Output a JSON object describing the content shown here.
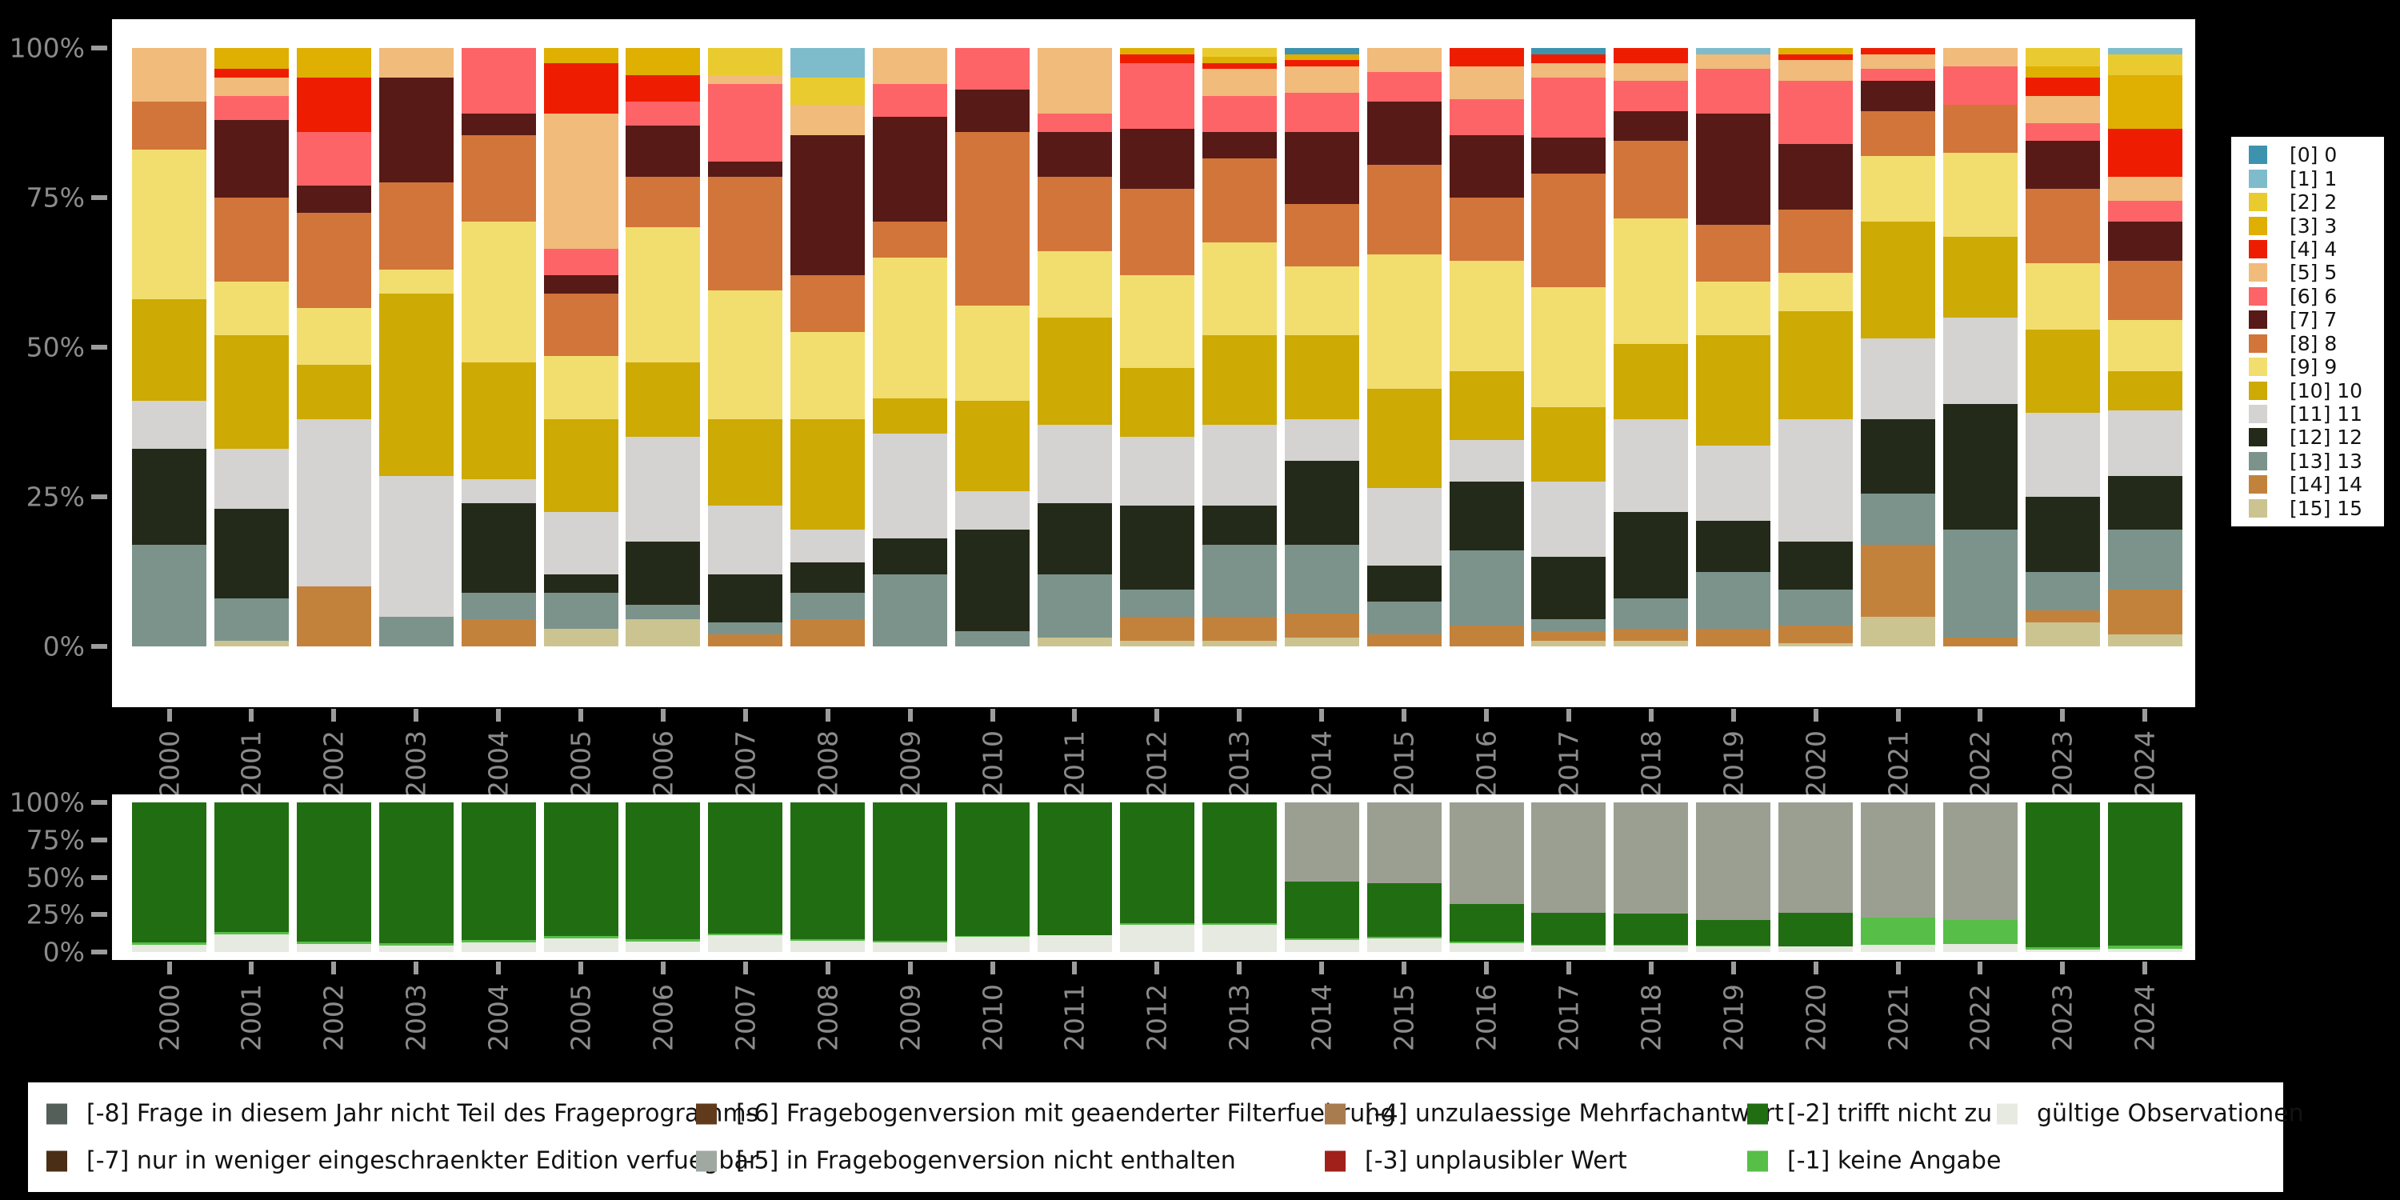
{
  "figure": {
    "background_color": "#000000",
    "panel_color": "#FFFFFF",
    "axis_text_color": "#8B8B8B",
    "years": [
      "2000",
      "2001",
      "2002",
      "2003",
      "2004",
      "2005",
      "2006",
      "2007",
      "2008",
      "2009",
      "2010",
      "2011",
      "2012",
      "2013",
      "2014",
      "2015",
      "2016",
      "2017",
      "2018",
      "2019",
      "2020",
      "2021",
      "2022",
      "2023",
      "2024"
    ],
    "y_tick_labels": [
      "100%",
      "75%",
      "50%",
      "25%",
      "0%"
    ]
  },
  "top_legend": {
    "entries_top_to_bottom": [
      "[0] 0",
      "[1] 1",
      "[2] 2",
      "[3] 3",
      "[4] 4",
      "[5] 5",
      "[6] 6",
      "[7] 7",
      "[8] 8",
      "[9] 9",
      "[10] 10",
      "[11] 11",
      "[12] 12",
      "[13] 13",
      "[14] 14",
      "[15] 15"
    ]
  },
  "bottom_legend": {
    "entries": [
      {
        "label": "[-8] Frage in diesem Jahr nicht Teil des Frageprogramms",
        "color": "#535F58",
        "x": 23,
        "row": 1
      },
      {
        "label": "[-7] nur in weniger eingeschraenkter Edition verfuegbar",
        "color": "#4A2F16",
        "x": 23,
        "row": 2
      },
      {
        "label": "[-6] Fragebogenversion mit geaenderter Filterfuehrung",
        "color": "#5F3A1C",
        "x": 835,
        "row": 1
      },
      {
        "label": "[-5] in Fragebogenversion nicht enthalten",
        "color": "#9FA8A1",
        "x": 835,
        "row": 2
      },
      {
        "label": "[-4] unzulaessige Mehrfachantwort",
        "color": "#A87C4F",
        "x": 1621,
        "row": 1
      },
      {
        "label": "[-3] unplausibler Wert",
        "color": "#A2201A",
        "x": 1621,
        "row": 2
      },
      {
        "label": "[-2] trifft nicht zu",
        "color": "#216E12",
        "x": 2149,
        "row": 1
      },
      {
        "label": "[-1] keine Angabe",
        "color": "#57BE48",
        "x": 2149,
        "row": 2
      },
      {
        "label": "gültige Observationen",
        "color": "#E7EAE1",
        "x": 2461,
        "row": 1
      }
    ]
  },
  "chart_data": [
    {
      "id": "values-by-year",
      "type": "bar",
      "subtype": "stacked_percent",
      "title": "",
      "xlabel": "",
      "ylabel": "",
      "ylim": [
        0,
        100
      ],
      "grid": false,
      "legend_position": "right",
      "categories": [
        "2000",
        "2001",
        "2002",
        "2003",
        "2004",
        "2005",
        "2006",
        "2007",
        "2008",
        "2009",
        "2010",
        "2011",
        "2012",
        "2013",
        "2014",
        "2015",
        "2016",
        "2017",
        "2018",
        "2019",
        "2020",
        "2021",
        "2022",
        "2023",
        "2024"
      ],
      "stack_order": "bottom_to_top",
      "series": [
        {
          "key": "15",
          "name": "[15] 15",
          "color": "#CBC491",
          "values": [
            0,
            1,
            0,
            0,
            0,
            3,
            4.5,
            0,
            0,
            0,
            0,
            1.5,
            1,
            1,
            1.5,
            0,
            0,
            1,
            1,
            0,
            0.5,
            5,
            0,
            4,
            2
          ]
        },
        {
          "key": "14",
          "name": "[14] 14",
          "color": "#C3823C",
          "values": [
            0,
            0,
            10,
            0,
            4.5,
            0,
            0,
            2,
            4.5,
            0,
            0,
            0,
            4,
            4,
            4,
            2,
            3.5,
            1.5,
            2,
            3,
            3,
            12,
            1.5,
            2,
            7.5
          ]
        },
        {
          "key": "13",
          "name": "[13] 13",
          "color": "#7B938B",
          "values": [
            17,
            7,
            0,
            5,
            4.5,
            6,
            2.5,
            2,
            4.5,
            12,
            2.5,
            10.5,
            4.5,
            12,
            11.5,
            5.5,
            12.5,
            2,
            5,
            9.5,
            6,
            8.5,
            18,
            6.5,
            10
          ]
        },
        {
          "key": "12",
          "name": "[12] 12",
          "color": "#242A19",
          "values": [
            16,
            15,
            0,
            0,
            15,
            3,
            10.5,
            8,
            5,
            6,
            17,
            12,
            14,
            6.5,
            14,
            6,
            11.5,
            10.5,
            14.5,
            8.5,
            8,
            12.5,
            21,
            12.5,
            9
          ]
        },
        {
          "key": "11",
          "name": "[11] 11",
          "color": "#D4D3D1",
          "values": [
            8,
            10,
            28,
            23.5,
            4,
            10.5,
            17.5,
            11.5,
            5.5,
            17.5,
            6.5,
            13,
            11.5,
            13.5,
            7,
            13,
            7,
            12.5,
            15.5,
            12.5,
            20.5,
            13.5,
            14.5,
            14,
            11
          ]
        },
        {
          "key": "10",
          "name": "[10] 10",
          "color": "#CDAA04",
          "values": [
            17,
            19,
            9,
            30.5,
            19.5,
            15.5,
            12.5,
            14.5,
            18.5,
            6,
            15,
            18,
            11.5,
            15,
            14,
            16.5,
            11.5,
            12.5,
            12.5,
            18.5,
            18,
            19.5,
            13.5,
            14,
            6.5
          ]
        },
        {
          "key": "9",
          "name": "[9] 9",
          "color": "#F2DE6E",
          "values": [
            25,
            9,
            9.5,
            4,
            23.5,
            10.5,
            22.5,
            21.5,
            14.5,
            23.5,
            16,
            11,
            15.5,
            15.5,
            11.5,
            22.5,
            18.5,
            20,
            21,
            9,
            6.5,
            11,
            14,
            11,
            8.5
          ]
        },
        {
          "key": "8",
          "name": "[8] 8",
          "color": "#D2753A",
          "values": [
            8,
            14,
            16,
            14.5,
            14.5,
            10.5,
            8.5,
            19,
            9.5,
            6,
            29,
            12.5,
            14.5,
            14,
            10.5,
            15,
            10.5,
            19,
            13,
            9.5,
            10.5,
            7.5,
            8,
            12.5,
            10
          ]
        },
        {
          "key": "7",
          "name": "[7] 7",
          "color": "#571A16",
          "values": [
            0,
            13,
            4.5,
            17.5,
            3.5,
            3,
            8.5,
            2.5,
            23.5,
            17.5,
            7,
            7.5,
            10,
            4.5,
            12,
            10.5,
            10.5,
            6,
            5,
            18.5,
            11,
            5,
            0,
            8,
            6.5
          ]
        },
        {
          "key": "6",
          "name": "[6] 6",
          "color": "#FD6467",
          "values": [
            0,
            4,
            9,
            0,
            11,
            4.5,
            4,
            13,
            0,
            5.5,
            7,
            3,
            11,
            6,
            6.5,
            5,
            6,
            10,
            5,
            7.5,
            10.5,
            2,
            6.5,
            3,
            3.5
          ]
        },
        {
          "key": "5",
          "name": "[5] 5",
          "color": "#F1BB7B",
          "values": [
            9,
            3,
            0,
            5,
            0,
            22.5,
            0,
            1.5,
            5,
            6,
            0,
            11,
            0,
            4.5,
            4.5,
            4,
            5.5,
            2.5,
            3,
            2.5,
            3.5,
            2.5,
            3,
            4.5,
            4
          ]
        },
        {
          "key": "4",
          "name": "[4] 4",
          "color": "#EE1D02",
          "values": [
            0,
            1.5,
            9,
            0,
            0,
            8.5,
            4.5,
            0,
            0,
            0,
            0,
            0,
            1.5,
            1,
            1,
            0,
            3,
            1.5,
            2.5,
            0,
            1,
            1,
            0,
            3,
            8
          ]
        },
        {
          "key": "3",
          "name": "[3] 3",
          "color": "#DFAF02",
          "values": [
            0,
            3.5,
            5,
            0,
            0,
            2.5,
            4.5,
            0,
            0,
            0,
            0,
            0,
            1,
            1,
            1,
            0,
            0,
            0,
            0,
            0,
            1,
            0,
            0,
            2,
            9
          ]
        },
        {
          "key": "2",
          "name": "[2] 2",
          "color": "#E9CB2F",
          "values": [
            0,
            0,
            0,
            0,
            0,
            0,
            0,
            4.5,
            4.5,
            0,
            0,
            0,
            0,
            1.5,
            0,
            0,
            0,
            0,
            0,
            0,
            0,
            0,
            0,
            3,
            3.5
          ]
        },
        {
          "key": "1",
          "name": "[1] 1",
          "color": "#7FBCCB",
          "values": [
            0,
            0,
            0,
            0,
            0,
            0,
            0,
            0,
            5,
            0,
            0,
            0,
            0,
            0,
            0,
            0,
            0,
            0,
            0,
            1,
            0,
            0,
            0,
            0,
            1
          ]
        },
        {
          "key": "0",
          "name": "[0] 0",
          "color": "#3D93AE",
          "values": [
            0,
            0,
            0,
            0,
            0,
            0,
            0,
            0,
            0,
            0,
            0,
            0,
            0,
            0,
            1,
            0,
            0,
            1,
            0,
            0,
            0,
            0,
            0,
            0,
            0
          ]
        }
      ]
    },
    {
      "id": "missings-by-year",
      "type": "bar",
      "subtype": "stacked_percent",
      "title": "",
      "xlabel": "",
      "ylabel": "",
      "ylim": [
        0,
        100
      ],
      "grid": false,
      "legend_position": "bottom",
      "categories": [
        "2000",
        "2001",
        "2002",
        "2003",
        "2004",
        "2005",
        "2006",
        "2007",
        "2008",
        "2009",
        "2010",
        "2011",
        "2012",
        "2013",
        "2014",
        "2015",
        "2016",
        "2017",
        "2018",
        "2019",
        "2020",
        "2021",
        "2022",
        "2023",
        "2024"
      ],
      "stack_order": "bottom_to_top",
      "series": [
        {
          "key": "valid",
          "name": "gültige Observationen",
          "color": "#E7EAE1",
          "values": [
            5,
            12,
            5.5,
            4.5,
            6.5,
            9,
            7,
            11,
            7.5,
            6.5,
            10,
            11,
            18,
            18,
            8,
            9,
            6,
            4.5,
            4.5,
            4,
            3.5,
            5,
            5.5,
            1.5,
            2
          ]
        },
        {
          "key": "-1",
          "name": "[-1] keine Angabe",
          "color": "#57BE48",
          "values": [
            1.5,
            1.5,
            1.5,
            1.5,
            1.5,
            1.5,
            1.5,
            1.5,
            1,
            1,
            0.5,
            0.5,
            1,
            1,
            1,
            1,
            1,
            0.5,
            0.5,
            0.5,
            0.5,
            18,
            16,
            1.5,
            2.5
          ]
        },
        {
          "key": "-2",
          "name": "[-2] trifft nicht zu",
          "color": "#216E12",
          "values": [
            93.5,
            86.5,
            93,
            94,
            92,
            89.5,
            91.5,
            87.5,
            91.5,
            92.5,
            89.5,
            88.5,
            81,
            81,
            38,
            36,
            25,
            21,
            20.5,
            17,
            22,
            0,
            0,
            97,
            95.5
          ]
        },
        {
          "key": "-5",
          "name": "[-5] in Fragebogenversion nicht enthalten",
          "color": "#9B9F92",
          "values": [
            0,
            0,
            0,
            0,
            0,
            0,
            0,
            0,
            0,
            0,
            0,
            0,
            0,
            0,
            53,
            54,
            68,
            74,
            74.5,
            78.5,
            74,
            77,
            78.5,
            0,
            0
          ]
        }
      ]
    }
  ]
}
